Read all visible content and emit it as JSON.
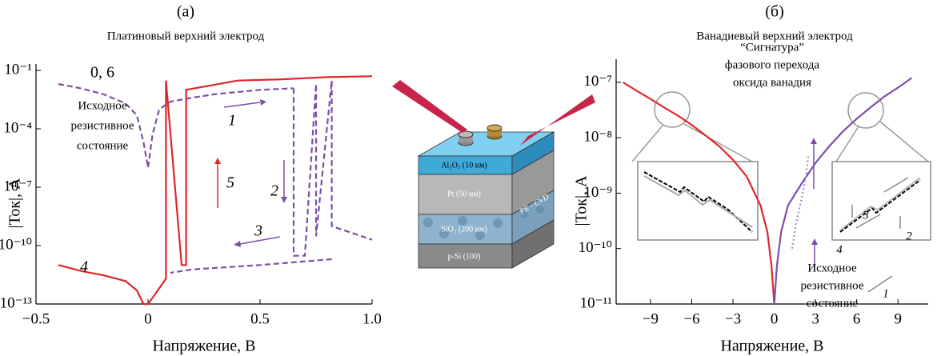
{
  "chart_data": [
    {
      "type": "line",
      "panel": "(a)",
      "title": "Платиновый верхний электрод",
      "xlabel": "Напряжение, В",
      "ylabel": "|Ток|, А",
      "ylog": true,
      "xlim": [
        -0.5,
        1.0
      ],
      "ylim": [
        1e-13,
        0.1
      ],
      "xticks": [
        {
          "value": -0.5,
          "label": "−0.5"
        },
        0,
        0.5,
        {
          "value": 1.0,
          "label": "1.0"
        }
      ],
      "yticks": [
        {
          "value": 1e-13,
          "label": "10⁻¹³"
        },
        {
          "value": 1e-10,
          "label": "10⁻¹⁰"
        },
        {
          "value": 1e-07,
          "label": "10⁻⁷"
        },
        {
          "value": 0.0001,
          "label": "10⁻⁴"
        },
        {
          "value": 0.1,
          "label": "10⁻¹"
        }
      ],
      "series": [
        {
          "color": "#7b4fa8",
          "line_style": "dashed",
          "x": [
            -0.4,
            -0.3,
            -0.2,
            -0.1,
            -0.05,
            -0.02,
            0,
            0.02,
            0.05,
            0.1,
            0.2,
            0.3,
            0.5,
            0.65
          ],
          "values": [
            0.02,
            0.012,
            0.006,
            0.002,
            0.0005,
            2e-05,
            1e-06,
            5e-05,
            0.001,
            0.0025,
            0.004,
            0.006,
            0.01,
            0.012
          ]
        },
        {
          "color": "#7b4fa8",
          "line_style": "dashed",
          "x": [
            0.65,
            0.65,
            0.7,
            0.75,
            0.75,
            0.82,
            0.82,
            1.0
          ],
          "values": [
            0.012,
            3e-11,
            3e-11,
            0.02,
            3e-10,
            0.03,
            1e-09,
            2e-10
          ]
        },
        {
          "color": "#7b4fa8",
          "line_style": "dashed",
          "x": [
            0.82,
            0.5,
            0.2,
            0.1
          ],
          "values": [
            2e-11,
            1e-11,
            6e-12,
            4e-12
          ]
        },
        {
          "color": "#e0262b",
          "line_style": "solid",
          "x": [
            -0.4,
            -0.3,
            -0.2,
            -0.1,
            -0.05,
            -0.02,
            0,
            0.03,
            0.08,
            0.08,
            0.15,
            0.17,
            0.17,
            0.4,
            0.6,
            0.8,
            1.0
          ],
          "values": [
            1e-11,
            5e-12,
            3e-12,
            1.5e-12,
            5e-13,
            1e-13,
            1e-13,
            3e-13,
            2e-12,
            0.03,
            1e-11,
            1e-11,
            0.01,
            0.03,
            0.035,
            0.045,
            0.05
          ]
        }
      ],
      "annotations": [
        "0, 6",
        "Исходное",
        "резистивное",
        "состояние",
        "1",
        "2",
        "3",
        "4",
        "5"
      ]
    },
    {
      "type": "line",
      "panel": "(б)",
      "title": "Ванадиевый верхний электрод",
      "xlabel": "Напряжение, В",
      "ylabel": "|Ток|, А",
      "ylog": true,
      "xlim": [
        -11.5,
        11.2
      ],
      "ylim": [
        1e-11,
        2e-07
      ],
      "xticks": [
        {
          "value": -9,
          "label": "−9"
        },
        {
          "value": -6,
          "label": "−6"
        },
        {
          "value": -3,
          "label": "−3"
        },
        0,
        3,
        6,
        9
      ],
      "yticks": [
        {
          "value": 1e-11,
          "label": "10⁻¹¹"
        },
        {
          "value": 1e-10,
          "label": "10⁻¹⁰"
        },
        {
          "value": 1e-09,
          "label": "10⁻⁹"
        },
        {
          "value": 1e-08,
          "label": "10⁻⁸"
        },
        {
          "value": 1e-07,
          "label": "10⁻⁷"
        }
      ],
      "series": [
        {
          "color": "#e0262b",
          "line_style": "solid",
          "x": [
            -11,
            -10,
            -9,
            -8,
            -7,
            -6,
            -5,
            -4,
            -3,
            -2,
            -1,
            -0.5,
            -0.2,
            0
          ],
          "values": [
            1e-07,
            7e-08,
            5e-08,
            3.5e-08,
            2.5e-08,
            1.7e-08,
            1.1e-08,
            7e-09,
            4e-09,
            2e-09,
            6e-10,
            2e-10,
            5e-11,
            1e-11
          ]
        },
        {
          "color": "#7b4fa8",
          "line_style": "solid",
          "x": [
            0,
            0.2,
            0.5,
            1,
            2,
            3,
            4,
            5,
            6,
            7,
            8,
            9,
            10
          ],
          "values": [
            1e-11,
            5e-11,
            2e-10,
            6e-10,
            1.5e-09,
            3.5e-09,
            7e-09,
            1.3e-08,
            2.2e-08,
            3.5e-08,
            5.5e-08,
            8e-08,
            1.2e-07
          ]
        },
        {
          "color": "#a48cc4",
          "line_style": "dotted",
          "x": [
            1.3,
            1.6,
            2.0,
            2.3,
            2.5
          ],
          "values": [
            1e-10,
            3e-10,
            8e-10,
            2e-09,
            5e-09
          ]
        }
      ],
      "annotations": [
        "“Сигнатура”",
        "фазового перехода",
        "оксида ванадия",
        "Исходное",
        "резистивное",
        "состояние"
      ],
      "inset_labels": [
        "3",
        "2",
        "4",
        "1"
      ]
    }
  ],
  "diagram": {
    "layers": [
      "Al₂O₃ (10 нм)",
      "Pt (50 нм)",
      "SiO₂ (200 нм)",
      "p-Si (100)"
    ],
    "side_label": "PE - CVD"
  }
}
